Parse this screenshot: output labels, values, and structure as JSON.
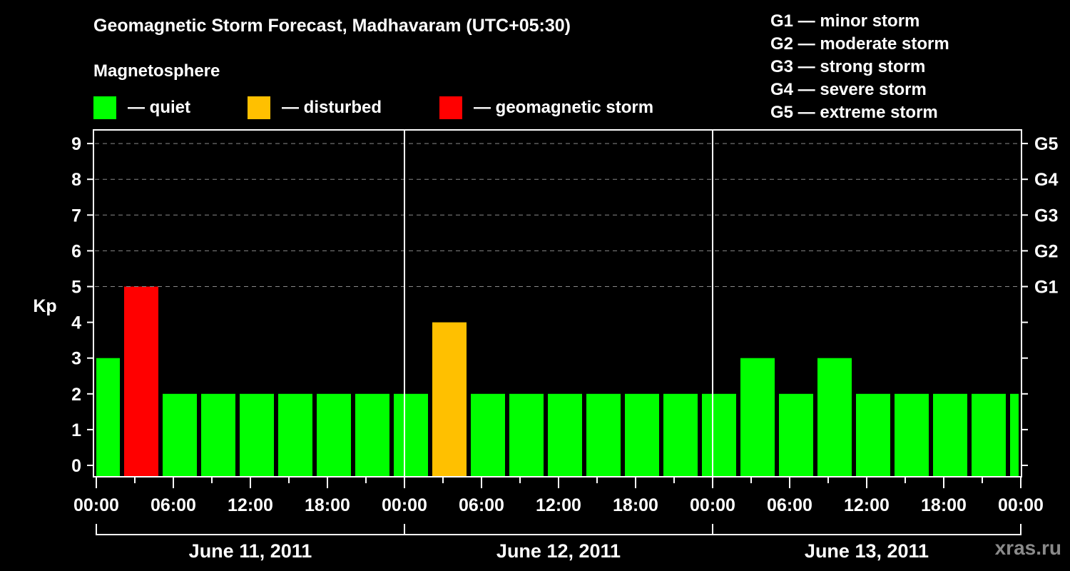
{
  "header": {
    "title": "Geomagnetic Storm Forecast, Madhavaram (UTC+05:30)",
    "subtitle": "Magnetosphere"
  },
  "legend": [
    {
      "label": "— quiet",
      "color": "#00ff00"
    },
    {
      "label": "— disturbed",
      "color": "#ffc000"
    },
    {
      "label": "— geomagnetic storm",
      "color": "#ff0000"
    }
  ],
  "g_levels": [
    "G1 — minor storm",
    "G2 — moderate storm",
    "G3 — strong storm",
    "G4 — severe storm",
    "G5 — extreme storm"
  ],
  "watermark": "xras.ru",
  "chart_data": {
    "type": "bar",
    "title": "Geomagnetic Storm Forecast, Madhavaram (UTC+05:30)",
    "xlabel": "",
    "ylabel": "Kp",
    "ylim": [
      0,
      9
    ],
    "y_ticks": [
      0,
      1,
      2,
      3,
      4,
      5,
      6,
      7,
      8,
      9
    ],
    "y2_ticks": [
      {
        "kp": 5,
        "label": "G1"
      },
      {
        "kp": 6,
        "label": "G2"
      },
      {
        "kp": 7,
        "label": "G3"
      },
      {
        "kp": 8,
        "label": "G4"
      },
      {
        "kp": 9,
        "label": "G5"
      }
    ],
    "grid": "dashed horizontal at Kp 5–9",
    "x_tick_labels": [
      "00:00",
      "06:00",
      "12:00",
      "18:00",
      "00:00",
      "06:00",
      "12:00",
      "18:00",
      "00:00",
      "06:00",
      "12:00",
      "18:00",
      "00:00"
    ],
    "days": [
      "June 11, 2011",
      "June 12, 2011",
      "June 13, 2011"
    ],
    "interval_hours": 3,
    "values": [
      3,
      5,
      2,
      2,
      2,
      2,
      2,
      2,
      2,
      4,
      2,
      2,
      2,
      2,
      2,
      2,
      2,
      3,
      2,
      3,
      2,
      2,
      2,
      2,
      2
    ],
    "color_rule": {
      "quiet": "Kp < 4 → #00ff00",
      "disturbed": "Kp = 4 → #ffc000",
      "storm": "Kp ≥ 5 → #ff0000"
    }
  }
}
